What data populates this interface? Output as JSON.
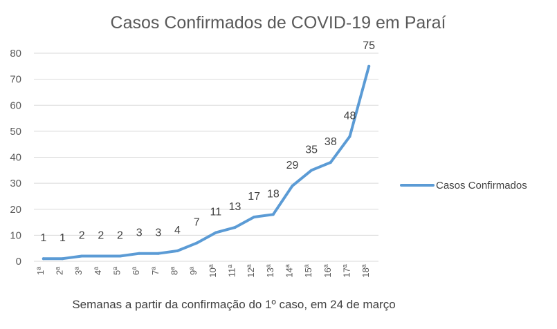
{
  "chart_data": {
    "type": "line",
    "title": "Casos Confirmados de COVID-19 em Paraí",
    "xlabel": "Semanas a partir da confirmação do 1º caso, em 24 de março",
    "ylabel": "",
    "ylim": [
      0,
      80
    ],
    "yticks": [
      0,
      10,
      20,
      30,
      40,
      50,
      60,
      70,
      80
    ],
    "grid": true,
    "legend_position": "right",
    "categories": [
      "1ª",
      "2ª",
      "3ª",
      "4ª",
      "5ª",
      "6ª",
      "7ª",
      "8ª",
      "9ª",
      "10ª",
      "11ª",
      "12ª",
      "13ª",
      "14ª",
      "15ª",
      "16ª",
      "17ª",
      "18ª"
    ],
    "series": [
      {
        "name": "Casos Confirmados",
        "color": "#5b9bd5",
        "values": [
          1,
          1,
          2,
          2,
          2,
          3,
          3,
          4,
          7,
          11,
          13,
          17,
          18,
          29,
          35,
          38,
          48,
          75
        ]
      }
    ]
  }
}
